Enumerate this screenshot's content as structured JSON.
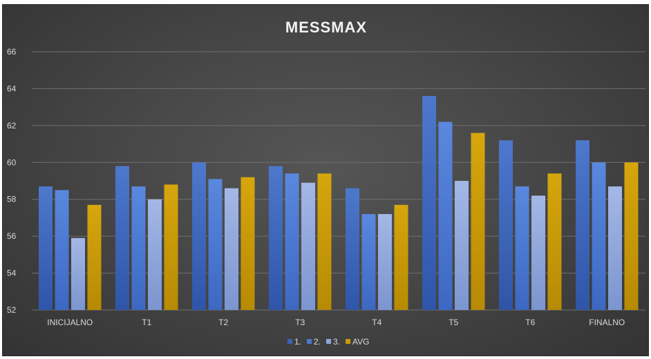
{
  "chart_data": {
    "type": "bar",
    "title": "MESSMAX",
    "categories": [
      "INICIJALNO",
      "T1",
      "T2",
      "T3",
      "T4",
      "T5",
      "T6",
      "FINALNO"
    ],
    "series": [
      {
        "name": "1.",
        "color": "#3a62b8",
        "values": [
          58.7,
          59.8,
          60.0,
          59.8,
          58.6,
          63.6,
          61.2,
          61.2
        ]
      },
      {
        "name": "2.",
        "color": "#4a78d2",
        "values": [
          58.5,
          58.7,
          59.1,
          59.4,
          57.2,
          62.2,
          58.7,
          60.0
        ]
      },
      {
        "name": "3.",
        "color": "#8ea6dc",
        "values": [
          55.9,
          58.0,
          58.6,
          58.9,
          57.2,
          59.0,
          58.2,
          58.7
        ]
      },
      {
        "name": "AVG",
        "color": "#c99a06",
        "values": [
          57.7,
          58.8,
          59.2,
          59.4,
          57.7,
          61.6,
          59.4,
          60.0
        ]
      }
    ],
    "ylim": [
      52,
      66
    ],
    "yticks": [
      52,
      54,
      56,
      58,
      60,
      62,
      64,
      66
    ],
    "grid": true,
    "legend": "bottom"
  }
}
